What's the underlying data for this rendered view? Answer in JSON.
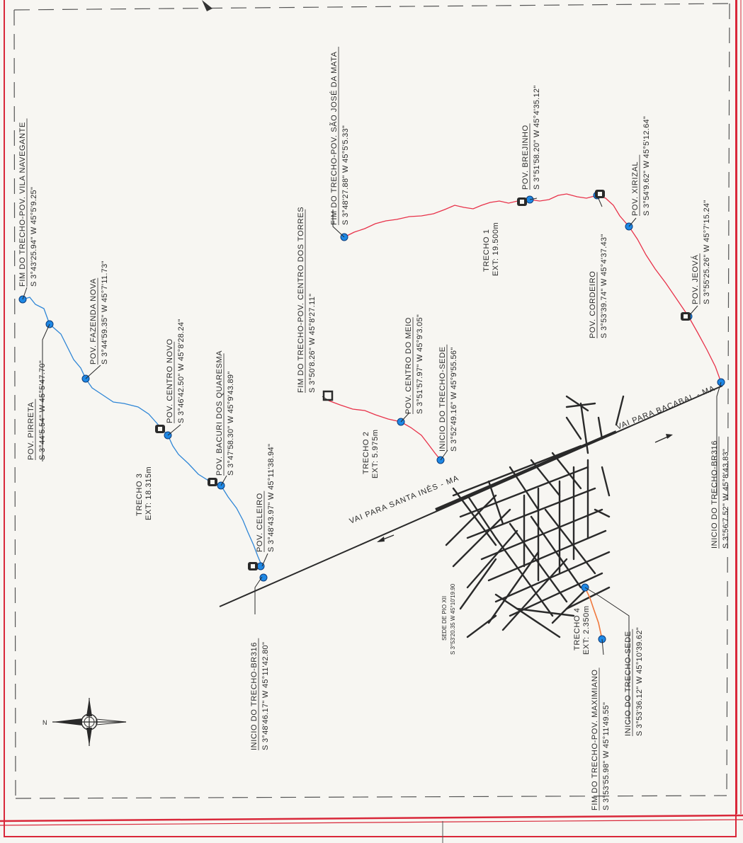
{
  "sheet": {
    "border_color": "#d9283a"
  },
  "colors": {
    "trecho1": "#e8324a",
    "trecho2": "#e8324a",
    "trecho3": "#2f86d6",
    "trecho4": "#f0783c",
    "node": "#1e88e5",
    "roads": "#2a2a2a"
  },
  "roads": {
    "santa_ines": "VAI PARA SANTA INÊS - MA",
    "bacabal": "VAI PARA BACABAL - MA"
  },
  "compass": {
    "north": "N"
  },
  "sede": {
    "name": "SEDE DE PIO XII",
    "coord": "S 3°53'20.35 W 45°10'19.90"
  },
  "trechos": [
    {
      "id": "t1",
      "name": "TRECHO 1",
      "ext": "EXT: 19.500m"
    },
    {
      "id": "t2",
      "name": "TRECHO 2",
      "ext": "EXT: 5.975m"
    },
    {
      "id": "t3",
      "name": "TRECHO 3",
      "ext": "EXT: 18.315m"
    },
    {
      "id": "t4",
      "name": "TRECHO 4",
      "ext": "EXT: 2.350m"
    }
  ],
  "points": {
    "vila_navegante": {
      "name": "FIM DO TRECHO-POV. VILA NAVEGANTE",
      "coord": "S 3°43'25.94\" W 45°5'9.25\""
    },
    "pirreta": {
      "name": "POV. PIRRETA",
      "coord": "S 3°44'5.54\" W 45°5'47.70\""
    },
    "fazenda_nova": {
      "name": "POV. FAZENDA NOVA",
      "coord": "S 3°44'59.35\" W 45°7'11.73\""
    },
    "centro_novo": {
      "name": "POV. CENTRO NOVO",
      "coord": "S 3°46'42.50\" W 45°8'28.24\""
    },
    "bacuri": {
      "name": "POV. BACURI DOS QUARESMA",
      "coord": "S 3°47'58.30\" W 45°9'43.89\""
    },
    "celeiro": {
      "name": "POV. CELEIRO",
      "coord": "S 3°48'43.97\" W 45°11'38.94\""
    },
    "inicio_br316_w": {
      "name": "INICIO DO TRECHO-BR316",
      "coord": "S 3°48'46.17\" W 45°11'42.80\""
    },
    "centro_dos_torres": {
      "name": "FIM DO TRECHO-POV. CENTRO DOS TORRES",
      "coord": "S 3°50'8.26\" W 45°8'27.11\""
    },
    "centro_do_meio": {
      "name": "POV. CENTRO DO MEIO",
      "coord": "S 3°51'57.97\" W 45°9'3.05\""
    },
    "inicio_sede_t2": {
      "name": "INICIO DO TRECHO-SEDE",
      "coord": "S 3°52'49.16\" W 45°9'55.56\""
    },
    "sao_jose_da_mata": {
      "name": "FIM DO TRECHO-POV. SÃO JOSÉ DA MATA",
      "coord": "S 3°48'27.88\" W 45°5'5.33\""
    },
    "brejinho": {
      "name": "POV. BREJINHO",
      "coord": "S 3°51'58.20\" W 45°4'35.12\""
    },
    "cordeiro": {
      "name": "POV. CORDEIRO",
      "coord": "S 3°53'39.74\" W 45°4'37.43\""
    },
    "xirizal": {
      "name": "POV. XIRIZAL",
      "coord": "S 3°54'9.62\" W 45°5'12.64\""
    },
    "jeova": {
      "name": "POV. JEOVÁ",
      "coord": "S 3°55'25.26\" W 45°7'15.24\""
    },
    "inicio_br316_e": {
      "name": "INICIO DO TRECHO-BR316",
      "coord": "S 3°56'7.52\" W 45°8'43.83\""
    },
    "maximiano": {
      "name": "FIM DO TRECHO-POV. MAXIMIANO",
      "coord": "S 3°53'55.98\" W 45°11'49.55\""
    },
    "inicio_sede_t4": {
      "name": "INICIO DO TRECHO-SEDE",
      "coord": "S 3°53'36.12\" W 45°10'39.62\""
    }
  }
}
